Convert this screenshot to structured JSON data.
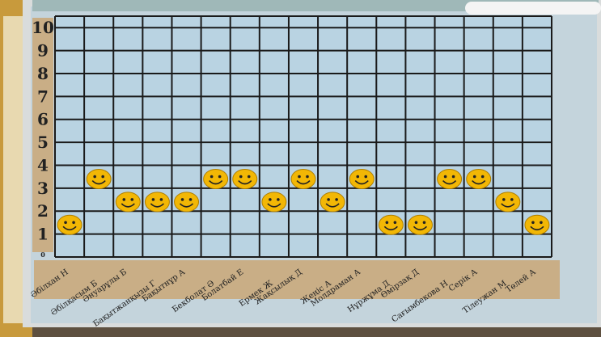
{
  "chart_data": {
    "type": "scatter",
    "marker": "smiley-face",
    "categories": [
      "Әбілхан Н",
      "Әбілқасым Б",
      "Әнуарұлы Б",
      "Бақытжанқызы Г",
      "Бақытнұр А",
      "Бекболат Ә",
      "Болатбай Е",
      "Ермек Ж",
      "Жақсылық Д",
      "Жеңіс А",
      "Молдраман А",
      "Нұржұма Д",
      "Өмірзақ Д",
      "Сағымбекова Н",
      "Серік А",
      "Тілеужан М",
      "Төлей А"
    ],
    "values": [
      1,
      3,
      2,
      2,
      2,
      3,
      3,
      2,
      3,
      2,
      3,
      1,
      1,
      3,
      3,
      2,
      1
    ],
    "yticks": [
      "0",
      "1",
      "2",
      "3",
      "4",
      "5",
      "6",
      "7",
      "8",
      "9",
      "10"
    ],
    "ylim": [
      0,
      10
    ],
    "grid": true,
    "colors": {
      "grid_bg": "#b9d3e2",
      "grid_line": "#1a1a1a",
      "marker": "#f2b705",
      "label_bg": "#c9ae86"
    }
  }
}
